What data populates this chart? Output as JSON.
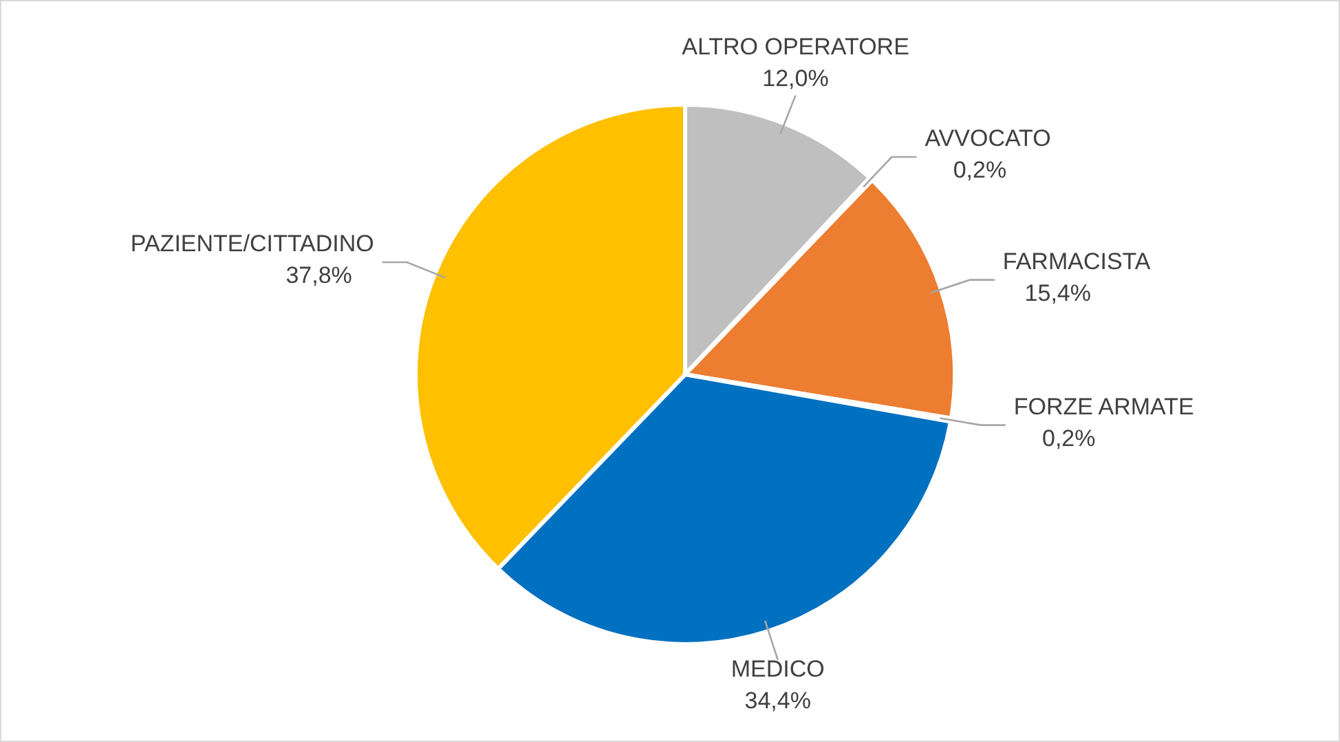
{
  "chart_data": {
    "type": "pie",
    "categories": [
      "ALTRO OPERATORE",
      "AVVOCATO",
      "FARMACISTA",
      "FORZE ARMATE",
      "MEDICO",
      "PAZIENTE/CITTADINO"
    ],
    "values": [
      12.0,
      0.2,
      15.4,
      0.2,
      34.4,
      37.8
    ],
    "colors": [
      "#bfbfbf",
      "#5b9bd5",
      "#ed7d31",
      "#a5a5a5",
      "#0070c0",
      "#ffc000"
    ],
    "value_labels": [
      "12,0%",
      "0,2%",
      "15,4%",
      "0,2%",
      "34,4%",
      "37,8%"
    ]
  }
}
